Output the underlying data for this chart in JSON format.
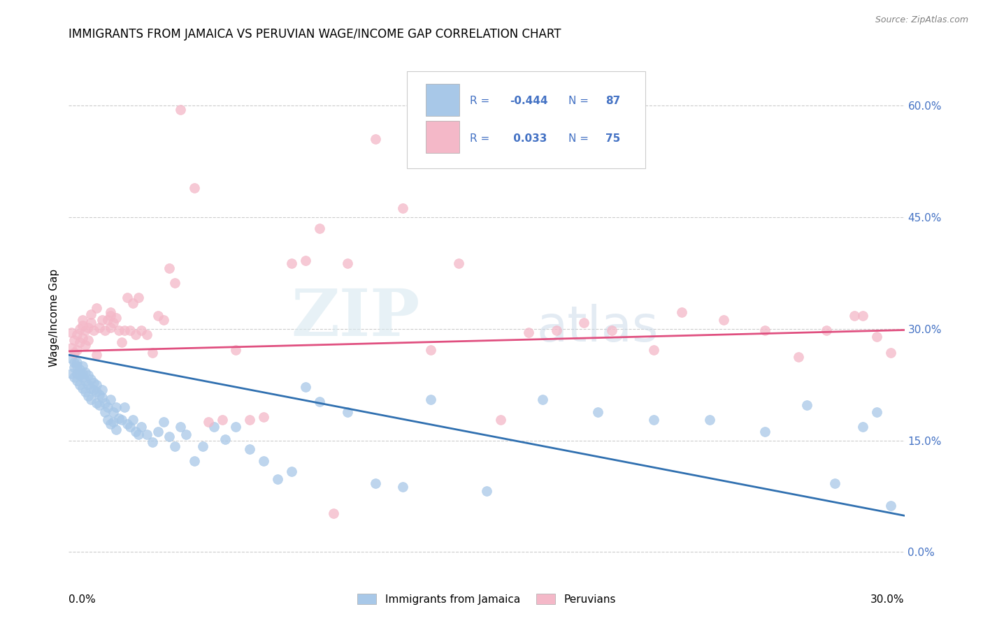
{
  "title": "IMMIGRANTS FROM JAMAICA VS PERUVIAN WAGE/INCOME GAP CORRELATION CHART",
  "source": "Source: ZipAtlas.com",
  "ylabel": "Wage/Income Gap",
  "yticks": [
    0.0,
    0.15,
    0.3,
    0.45,
    0.6
  ],
  "xlim": [
    0.0,
    0.3
  ],
  "ylim": [
    -0.02,
    0.65
  ],
  "legend_label1": "Immigrants from Jamaica",
  "legend_label2": "Peruvians",
  "blue_color": "#a8c8e8",
  "pink_color": "#f4b8c8",
  "blue_line_color": "#3070b0",
  "pink_line_color": "#e05080",
  "blue_intercept": 0.265,
  "blue_slope": -0.72,
  "pink_intercept": 0.27,
  "pink_slope": 0.095,
  "watermark_zip": "ZIP",
  "watermark_atlas": "atlas",
  "blue_x": [
    0.001,
    0.001,
    0.002,
    0.002,
    0.002,
    0.003,
    0.003,
    0.003,
    0.003,
    0.004,
    0.004,
    0.004,
    0.005,
    0.005,
    0.005,
    0.005,
    0.006,
    0.006,
    0.006,
    0.007,
    0.007,
    0.007,
    0.008,
    0.008,
    0.008,
    0.009,
    0.009,
    0.01,
    0.01,
    0.01,
    0.011,
    0.011,
    0.012,
    0.012,
    0.013,
    0.013,
    0.014,
    0.014,
    0.015,
    0.015,
    0.016,
    0.016,
    0.017,
    0.017,
    0.018,
    0.019,
    0.02,
    0.021,
    0.022,
    0.023,
    0.024,
    0.025,
    0.026,
    0.028,
    0.03,
    0.032,
    0.034,
    0.036,
    0.038,
    0.04,
    0.042,
    0.045,
    0.048,
    0.052,
    0.056,
    0.06,
    0.065,
    0.07,
    0.075,
    0.08,
    0.085,
    0.09,
    0.1,
    0.11,
    0.12,
    0.13,
    0.15,
    0.17,
    0.19,
    0.21,
    0.23,
    0.25,
    0.265,
    0.275,
    0.285,
    0.29,
    0.295
  ],
  "blue_y": [
    0.26,
    0.24,
    0.255,
    0.235,
    0.248,
    0.25,
    0.24,
    0.23,
    0.255,
    0.245,
    0.225,
    0.238,
    0.24,
    0.22,
    0.235,
    0.25,
    0.23,
    0.215,
    0.242,
    0.225,
    0.21,
    0.238,
    0.22,
    0.232,
    0.205,
    0.218,
    0.228,
    0.215,
    0.225,
    0.2,
    0.212,
    0.198,
    0.208,
    0.218,
    0.2,
    0.188,
    0.195,
    0.178,
    0.205,
    0.172,
    0.188,
    0.175,
    0.195,
    0.165,
    0.18,
    0.178,
    0.195,
    0.172,
    0.168,
    0.178,
    0.162,
    0.158,
    0.168,
    0.158,
    0.148,
    0.162,
    0.175,
    0.155,
    0.142,
    0.168,
    0.158,
    0.122,
    0.142,
    0.168,
    0.152,
    0.168,
    0.138,
    0.122,
    0.098,
    0.108,
    0.222,
    0.202,
    0.188,
    0.092,
    0.088,
    0.205,
    0.082,
    0.205,
    0.188,
    0.178,
    0.178,
    0.162,
    0.198,
    0.092,
    0.168,
    0.188,
    0.062
  ],
  "pink_x": [
    0.001,
    0.001,
    0.002,
    0.002,
    0.003,
    0.003,
    0.004,
    0.004,
    0.005,
    0.005,
    0.006,
    0.006,
    0.007,
    0.007,
    0.008,
    0.008,
    0.009,
    0.01,
    0.011,
    0.012,
    0.013,
    0.014,
    0.015,
    0.015,
    0.016,
    0.017,
    0.018,
    0.019,
    0.02,
    0.021,
    0.022,
    0.023,
    0.024,
    0.025,
    0.026,
    0.028,
    0.03,
    0.032,
    0.034,
    0.036,
    0.038,
    0.04,
    0.045,
    0.05,
    0.055,
    0.06,
    0.065,
    0.07,
    0.08,
    0.085,
    0.09,
    0.095,
    0.1,
    0.11,
    0.12,
    0.13,
    0.14,
    0.155,
    0.165,
    0.175,
    0.185,
    0.195,
    0.21,
    0.22,
    0.235,
    0.25,
    0.262,
    0.272,
    0.282,
    0.29,
    0.295,
    0.005,
    0.01,
    0.015,
    0.285
  ],
  "pink_y": [
    0.275,
    0.295,
    0.285,
    0.268,
    0.292,
    0.272,
    0.282,
    0.3,
    0.288,
    0.312,
    0.278,
    0.298,
    0.302,
    0.285,
    0.32,
    0.308,
    0.298,
    0.328,
    0.302,
    0.312,
    0.298,
    0.312,
    0.322,
    0.302,
    0.308,
    0.315,
    0.298,
    0.282,
    0.298,
    0.342,
    0.298,
    0.335,
    0.292,
    0.342,
    0.298,
    0.292,
    0.268,
    0.318,
    0.312,
    0.382,
    0.362,
    0.595,
    0.49,
    0.175,
    0.178,
    0.272,
    0.178,
    0.182,
    0.388,
    0.392,
    0.435,
    0.052,
    0.388,
    0.555,
    0.462,
    0.272,
    0.388,
    0.178,
    0.295,
    0.298,
    0.308,
    0.298,
    0.272,
    0.322,
    0.312,
    0.298,
    0.262,
    0.298,
    0.318,
    0.29,
    0.268,
    0.305,
    0.265,
    0.318,
    0.318
  ]
}
